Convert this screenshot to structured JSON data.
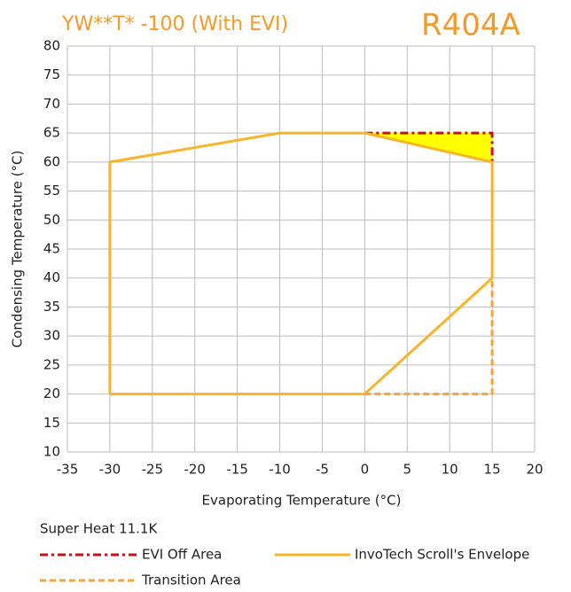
{
  "chart_data": {
    "type": "line",
    "title": "YW**T* -100 (With EVI)",
    "subtitle": "R404A",
    "note": "Super Heat 11.1K",
    "xlabel": "Evaporating Temperature (°C)",
    "ylabel": "Condensing Temperature (°C)",
    "xlim": [
      -35,
      20
    ],
    "ylim": [
      10,
      80
    ],
    "xticks": [
      -35,
      -30,
      -25,
      -20,
      -15,
      -10,
      -5,
      0,
      5,
      10,
      15,
      20
    ],
    "yticks": [
      10,
      15,
      20,
      25,
      30,
      35,
      40,
      45,
      50,
      55,
      60,
      65,
      70,
      75,
      80
    ],
    "grid": true,
    "series": [
      {
        "name": "EVI Off Area",
        "color": "#c0141c",
        "style": "dashdot",
        "fill": "#ffff00",
        "x": [
          0,
          15,
          15
        ],
        "values": [
          65,
          65,
          60
        ]
      },
      {
        "name": "InvoTech Scroll's Envelope",
        "color": "#f7b52c",
        "style": "solid",
        "x": [
          -30,
          -30,
          -10,
          0,
          15,
          15,
          0,
          -30
        ],
        "values": [
          20,
          60,
          65,
          65,
          60,
          40,
          20,
          20
        ]
      },
      {
        "name": "Transition Area",
        "color": "#f7a23b",
        "style": "dashed",
        "x": [
          0,
          15,
          15
        ],
        "values": [
          20,
          20,
          40
        ]
      }
    ]
  }
}
